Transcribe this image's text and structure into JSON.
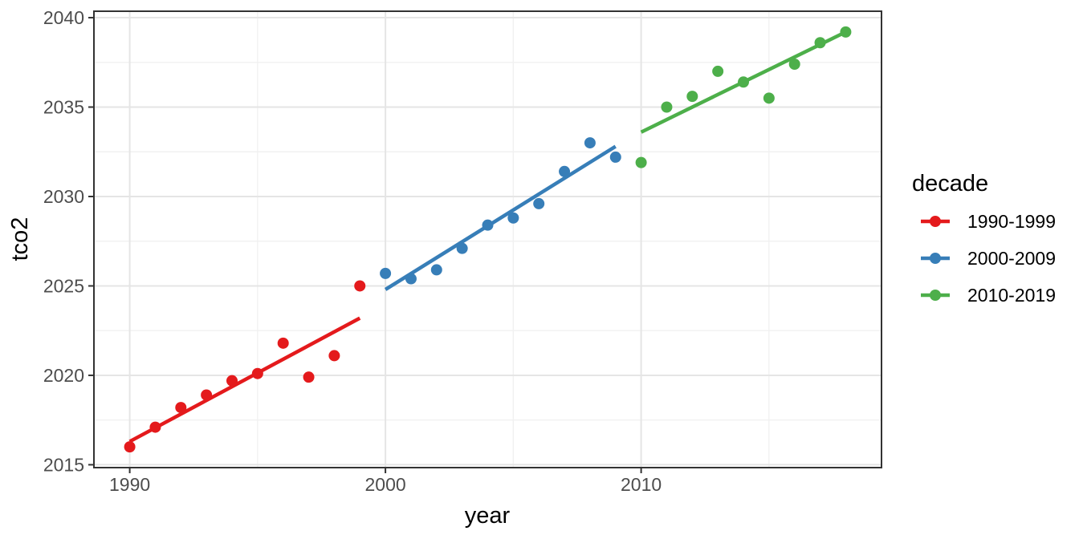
{
  "chart_data": {
    "type": "scatter",
    "title": "",
    "xlabel": "year",
    "ylabel": "tco2",
    "legend_title": "decade",
    "legend_position": "right",
    "grid": true,
    "xlim": [
      1988.6,
      2019.4
    ],
    "ylim": [
      2014.84,
      2040.36
    ],
    "x_ticks": [
      1990,
      2000,
      2010
    ],
    "x_minor_ticks": [
      1995,
      2005,
      2015
    ],
    "y_ticks": [
      2015,
      2020,
      2025,
      2030,
      2035,
      2040
    ],
    "y_minor_ticks": [
      2017.5,
      2022.5,
      2027.5,
      2032.5,
      2037.5
    ],
    "series": [
      {
        "name": "1990-1999",
        "color": "#E41A1C",
        "x": [
          1990,
          1991,
          1992,
          1993,
          1994,
          1995,
          1996,
          1997,
          1998,
          1999
        ],
        "y": [
          2016.0,
          2017.1,
          2018.2,
          2018.9,
          2019.7,
          2020.1,
          2021.8,
          2019.9,
          2021.1,
          2025.0
        ],
        "trend_line": {
          "x": [
            1990,
            1999
          ],
          "y": [
            2016.3,
            2023.2
          ]
        }
      },
      {
        "name": "2000-2009",
        "color": "#377EB8",
        "x": [
          2000,
          2001,
          2002,
          2003,
          2004,
          2005,
          2006,
          2007,
          2008,
          2009
        ],
        "y": [
          2025.7,
          2025.4,
          2025.9,
          2027.1,
          2028.4,
          2028.8,
          2029.6,
          2031.4,
          2033.0,
          2032.2
        ],
        "trend_line": {
          "x": [
            2000,
            2009
          ],
          "y": [
            2024.8,
            2032.8
          ]
        }
      },
      {
        "name": "2010-2019",
        "color": "#4DAF4A",
        "x": [
          2010,
          2011,
          2012,
          2013,
          2014,
          2015,
          2016,
          2017,
          2018
        ],
        "y": [
          2031.9,
          2035.0,
          2035.6,
          2037.0,
          2036.4,
          2035.5,
          2037.4,
          2038.6,
          2039.2
        ],
        "trend_line": {
          "x": [
            2010,
            2018
          ],
          "y": [
            2033.6,
            2039.2
          ]
        }
      }
    ]
  },
  "theme": {
    "background": "#ffffff",
    "panel_background": "#ffffff",
    "panel_border": "#333333",
    "grid_major": "#e5e5e5",
    "grid_minor": "#f1f1f1",
    "tick_mark": "#333333",
    "tick_label_color": "#4d4d4d",
    "title_color": "#000000"
  }
}
